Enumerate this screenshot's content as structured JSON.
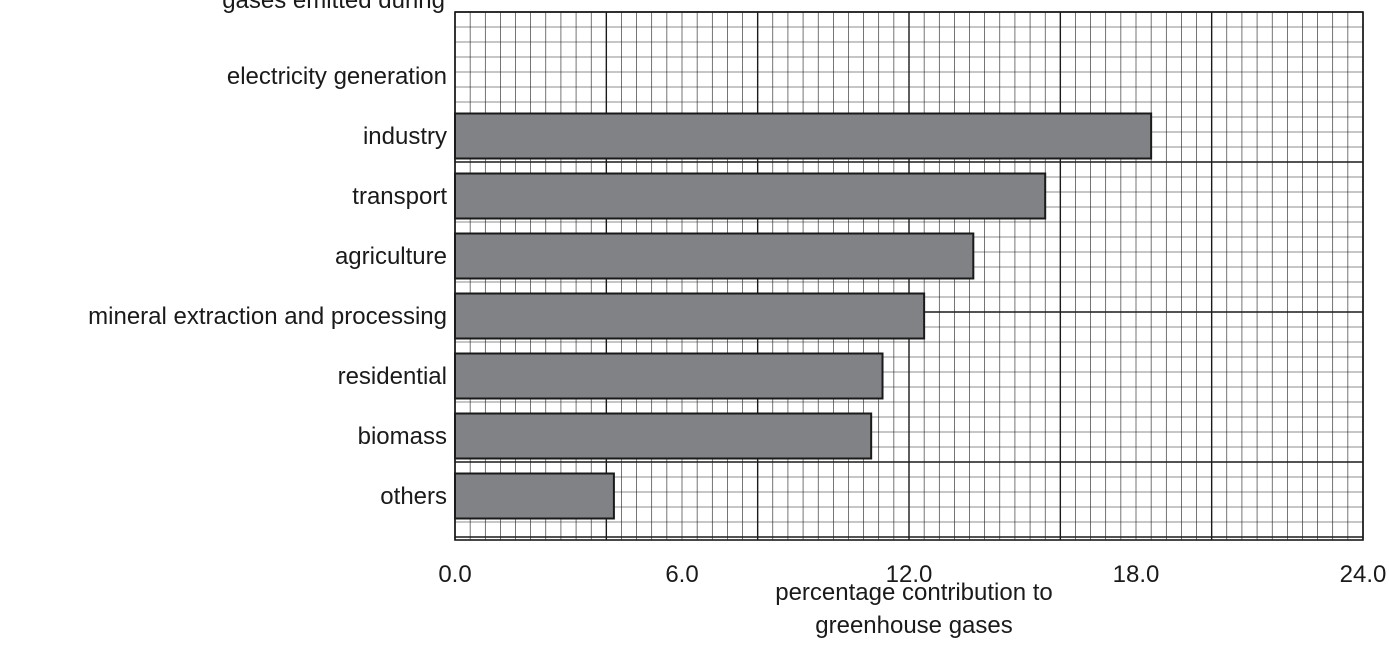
{
  "chart_data": {
    "type": "bar",
    "orientation": "horizontal",
    "title": "",
    "partial_text": "gases emitted during",
    "categories": [
      "electricity generation",
      "industry",
      "transport",
      "agriculture",
      "mineral extraction and processing",
      "residential",
      "biomass",
      "others"
    ],
    "values": [
      null,
      18.4,
      15.6,
      13.7,
      12.4,
      11.3,
      11.0,
      4.2
    ],
    "xlabel_lines": [
      "percentage contribution to",
      "greenhouse gases"
    ],
    "ylabel": "",
    "xlim": [
      0,
      24
    ],
    "xticks": [
      0,
      6,
      12,
      18,
      24
    ],
    "xtick_labels": [
      "0.0",
      "6.0",
      "12.0",
      "18.0",
      "24.0"
    ],
    "grid": true,
    "legend": "none",
    "colors": {
      "bar_fill": "#808285",
      "bar_stroke": "#1a1a1a",
      "grid_minor": "#1a1a1a",
      "grid_major": "#1a1a1a",
      "text": "#1a1a1a"
    }
  }
}
